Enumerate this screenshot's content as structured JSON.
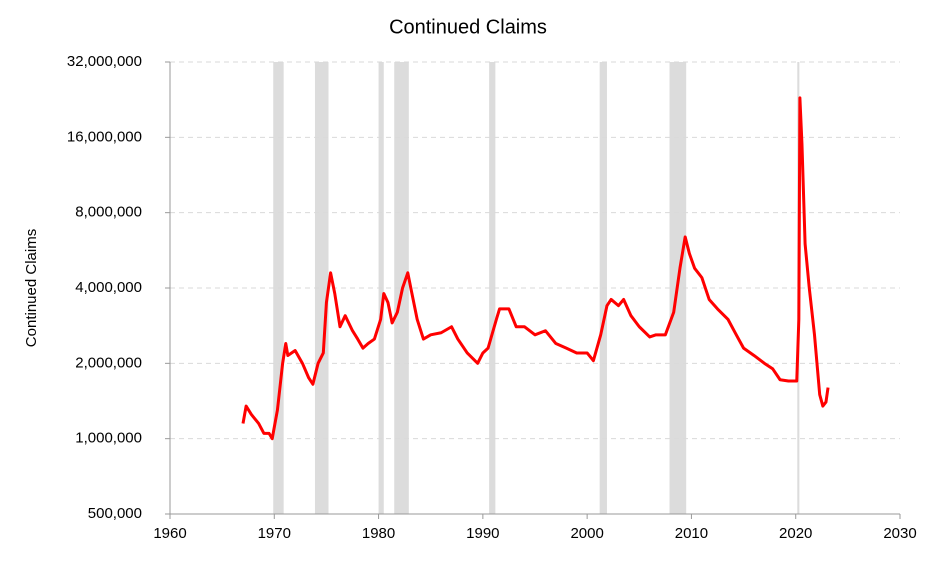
{
  "chart_data": {
    "type": "line",
    "title": "Continued Claims",
    "ylabel": "Continued Claims",
    "log_scale": true,
    "grid": true,
    "xlim": [
      1960,
      2030
    ],
    "xticks": [
      1960,
      1970,
      1980,
      1990,
      2000,
      2010,
      2020,
      2030
    ],
    "ylim": [
      500000,
      32000000
    ],
    "yticks": [
      {
        "value": 500000,
        "label": "500,000"
      },
      {
        "value": 1000000,
        "label": "1,000,000"
      },
      {
        "value": 2000000,
        "label": "2,000,000"
      },
      {
        "value": 4000000,
        "label": "4,000,000"
      },
      {
        "value": 8000000,
        "label": "8,000,000"
      },
      {
        "value": 16000000,
        "label": "16,000,000"
      },
      {
        "value": 32000000,
        "label": "32,000,000"
      }
    ],
    "recession_color": "#dcdcdc",
    "recessions": [
      [
        1969.9,
        1970.9
      ],
      [
        1973.9,
        1975.2
      ],
      [
        1980.0,
        1980.5
      ],
      [
        1981.5,
        1982.9
      ],
      [
        1990.6,
        1991.2
      ],
      [
        2001.2,
        2001.9
      ],
      [
        2007.9,
        2009.5
      ],
      [
        2020.15,
        2020.35
      ]
    ],
    "series": [
      {
        "name": "Continued Claims",
        "color": "#ff0000",
        "x": [
          1967.0,
          1967.3,
          1967.8,
          1968.5,
          1969.0,
          1969.5,
          1969.8,
          1970.3,
          1970.8,
          1971.1,
          1971.3,
          1972.0,
          1972.7,
          1973.3,
          1973.7,
          1974.2,
          1974.7,
          1975.0,
          1975.4,
          1975.8,
          1976.3,
          1976.8,
          1977.5,
          1978.0,
          1978.5,
          1979.0,
          1979.6,
          1980.2,
          1980.5,
          1980.9,
          1981.3,
          1981.8,
          1982.3,
          1982.8,
          1983.2,
          1983.7,
          1984.3,
          1985.0,
          1986.0,
          1987.0,
          1987.6,
          1988.5,
          1989.5,
          1990.0,
          1990.5,
          1991.3,
          1991.6,
          1992.5,
          1993.2,
          1994.0,
          1995.0,
          1996.0,
          1997.0,
          1998.0,
          1999.0,
          2000.0,
          2000.6,
          2001.3,
          2001.9,
          2002.3,
          2003.0,
          2003.5,
          2004.2,
          2005.0,
          2006.0,
          2006.6,
          2007.5,
          2008.3,
          2008.9,
          2009.4,
          2009.8,
          2010.3,
          2011.0,
          2011.7,
          2012.5,
          2013.5,
          2014.3,
          2015.0,
          2016.0,
          2017.0,
          2017.8,
          2018.5,
          2019.3,
          2020.1,
          2020.3,
          2020.4,
          2020.6,
          2020.9,
          2021.3,
          2021.8,
          2022.3,
          2022.6,
          2022.9,
          2023.1
        ],
        "values": [
          1150000,
          1350000,
          1250000,
          1150000,
          1050000,
          1050000,
          1000000,
          1300000,
          2000000,
          2400000,
          2150000,
          2250000,
          2000000,
          1750000,
          1650000,
          2000000,
          2200000,
          3500000,
          4600000,
          3800000,
          2800000,
          3100000,
          2700000,
          2500000,
          2300000,
          2400000,
          2500000,
          3000000,
          3800000,
          3500000,
          2900000,
          3200000,
          4000000,
          4600000,
          3800000,
          3000000,
          2500000,
          2600000,
          2650000,
          2800000,
          2500000,
          2200000,
          2000000,
          2200000,
          2300000,
          3000000,
          3300000,
          3300000,
          2800000,
          2800000,
          2600000,
          2700000,
          2400000,
          2300000,
          2200000,
          2200000,
          2050000,
          2600000,
          3400000,
          3600000,
          3400000,
          3600000,
          3100000,
          2800000,
          2550000,
          2600000,
          2600000,
          3200000,
          4800000,
          6400000,
          5500000,
          4800000,
          4400000,
          3600000,
          3300000,
          3000000,
          2600000,
          2300000,
          2150000,
          2000000,
          1900000,
          1720000,
          1700000,
          1700000,
          3000000,
          23000000,
          15000000,
          6000000,
          4000000,
          2600000,
          1500000,
          1350000,
          1400000,
          1600000
        ]
      }
    ]
  }
}
